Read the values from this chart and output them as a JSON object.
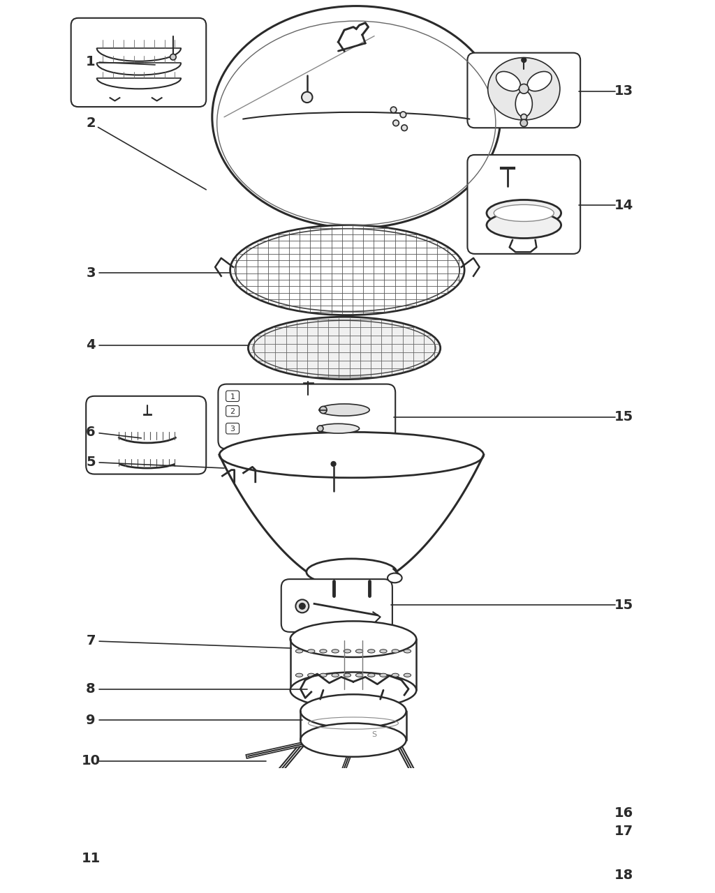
{
  "bg": "#ffffff",
  "lc": "#2a2a2a",
  "lw": 1.5,
  "label_fs": 14,
  "figsize": [
    10.24,
    12.8
  ],
  "dpi": 100
}
